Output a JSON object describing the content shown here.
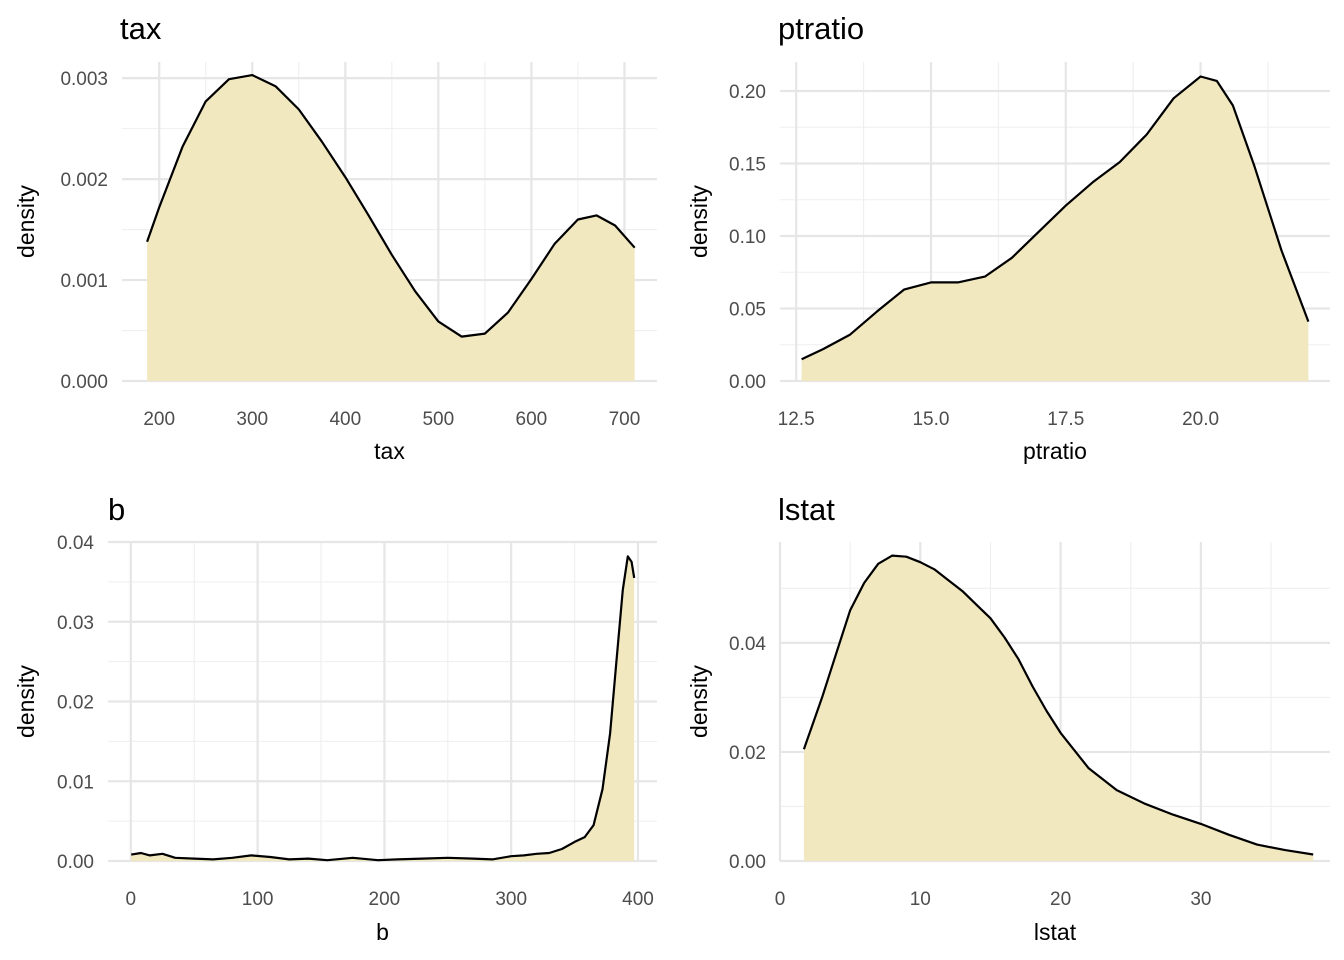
{
  "chart_data": [
    {
      "type": "area",
      "title": "tax",
      "xlabel": "tax",
      "ylabel": "density",
      "xlim": [
        160,
        735
      ],
      "ylim": [
        0,
        0.00316
      ],
      "x_ticks": [
        200,
        300,
        400,
        500,
        600,
        700
      ],
      "x_tick_labels": [
        "200",
        "300",
        "400",
        "500",
        "600",
        "700"
      ],
      "y_ticks": [
        0,
        0.001,
        0.002,
        0.003
      ],
      "y_tick_labels": [
        "0.000",
        "0.001",
        "0.002",
        "0.003"
      ],
      "grid": true,
      "color": "#f2e8c0",
      "line_color": "#000000",
      "x": [
        187,
        200,
        225,
        250,
        275,
        300,
        325,
        350,
        375,
        400,
        425,
        450,
        475,
        500,
        525,
        550,
        575,
        600,
        625,
        650,
        670,
        690,
        711
      ],
      "y": [
        0.00138,
        0.00172,
        0.00232,
        0.00277,
        0.00299,
        0.00303,
        0.00292,
        0.00269,
        0.00237,
        0.00202,
        0.00164,
        0.00125,
        0.00089,
        0.00059,
        0.00044,
        0.00047,
        0.00068,
        0.00101,
        0.00136,
        0.0016,
        0.00164,
        0.00154,
        0.00132
      ]
    },
    {
      "type": "area",
      "title": "ptratio",
      "xlabel": "ptratio",
      "ylabel": "density",
      "xlim": [
        12.2,
        22.4
      ],
      "ylim": [
        0,
        0.22
      ],
      "x_ticks": [
        12.5,
        15.0,
        17.5,
        20.0
      ],
      "x_tick_labels": [
        "12.5",
        "15.0",
        "17.5",
        "20.0"
      ],
      "y_ticks": [
        0,
        0.05,
        0.1,
        0.15,
        0.2
      ],
      "y_tick_labels": [
        "0.00",
        "0.05",
        "0.10",
        "0.15",
        "0.20"
      ],
      "grid": true,
      "color": "#f2e8c0",
      "line_color": "#000000",
      "x": [
        12.6,
        13.0,
        13.5,
        14.0,
        14.5,
        15.0,
        15.5,
        16.0,
        16.5,
        17.0,
        17.5,
        18.0,
        18.5,
        19.0,
        19.5,
        20.0,
        20.3,
        20.6,
        21.0,
        21.5,
        22.0
      ],
      "y": [
        0.015,
        0.022,
        0.032,
        0.048,
        0.063,
        0.068,
        0.068,
        0.072,
        0.085,
        0.103,
        0.121,
        0.137,
        0.151,
        0.17,
        0.195,
        0.21,
        0.207,
        0.19,
        0.148,
        0.09,
        0.041
      ]
    },
    {
      "type": "area",
      "title": "b",
      "xlabel": "b",
      "ylabel": "density",
      "xlim": [
        -18,
        415
      ],
      "ylim": [
        0,
        0.04
      ],
      "x_ticks": [
        0,
        100,
        200,
        300,
        400
      ],
      "x_tick_labels": [
        "0",
        "100",
        "200",
        "300",
        "400"
      ],
      "y_ticks": [
        0,
        0.01,
        0.02,
        0.03,
        0.04
      ],
      "y_tick_labels": [
        "0.00",
        "0.01",
        "0.02",
        "0.03",
        "0.04"
      ],
      "grid": true,
      "color": "#f2e8c0",
      "line_color": "#000000",
      "x": [
        0.3,
        8,
        15,
        25,
        35,
        50,
        65,
        80,
        95,
        110,
        125,
        140,
        155,
        175,
        195,
        210,
        230,
        250,
        270,
        285,
        300,
        310,
        320,
        330,
        340,
        350,
        358,
        365,
        372,
        378,
        383,
        388,
        392,
        395,
        397
      ],
      "y": [
        0.0008,
        0.001,
        0.0007,
        0.0009,
        0.0004,
        0.0003,
        0.0002,
        0.0004,
        0.0007,
        0.0005,
        0.0002,
        0.0003,
        0.0001,
        0.0004,
        0.0001,
        0.0002,
        0.0003,
        0.0004,
        0.0003,
        0.0002,
        0.0006,
        0.0007,
        0.0009,
        0.001,
        0.0015,
        0.0024,
        0.003,
        0.0045,
        0.009,
        0.016,
        0.025,
        0.034,
        0.0382,
        0.0375,
        0.0355
      ]
    },
    {
      "type": "area",
      "title": "lstat",
      "xlabel": "lstat",
      "ylabel": "density",
      "xlim": [
        0,
        39.2
      ],
      "ylim": [
        0,
        0.0585
      ],
      "x_ticks": [
        0,
        10,
        20,
        30
      ],
      "x_tick_labels": [
        "0",
        "10",
        "20",
        "30"
      ],
      "y_ticks": [
        0,
        0.02,
        0.04
      ],
      "y_tick_labels": [
        "0.00",
        "0.02",
        "0.04"
      ],
      "grid": true,
      "color": "#f2e8c0",
      "line_color": "#000000",
      "x": [
        1.7,
        3,
        4,
        5,
        6,
        7,
        8,
        9,
        10,
        11,
        12,
        13,
        14,
        15,
        16,
        17,
        18,
        19,
        20,
        22,
        24,
        26,
        28,
        30,
        32,
        34,
        36,
        38
      ],
      "y": [
        0.0205,
        0.03,
        0.038,
        0.046,
        0.051,
        0.0545,
        0.056,
        0.0558,
        0.0548,
        0.0535,
        0.0515,
        0.0495,
        0.047,
        0.0445,
        0.041,
        0.037,
        0.032,
        0.0275,
        0.0235,
        0.017,
        0.013,
        0.0105,
        0.0085,
        0.0068,
        0.0048,
        0.003,
        0.002,
        0.0012
      ]
    }
  ]
}
